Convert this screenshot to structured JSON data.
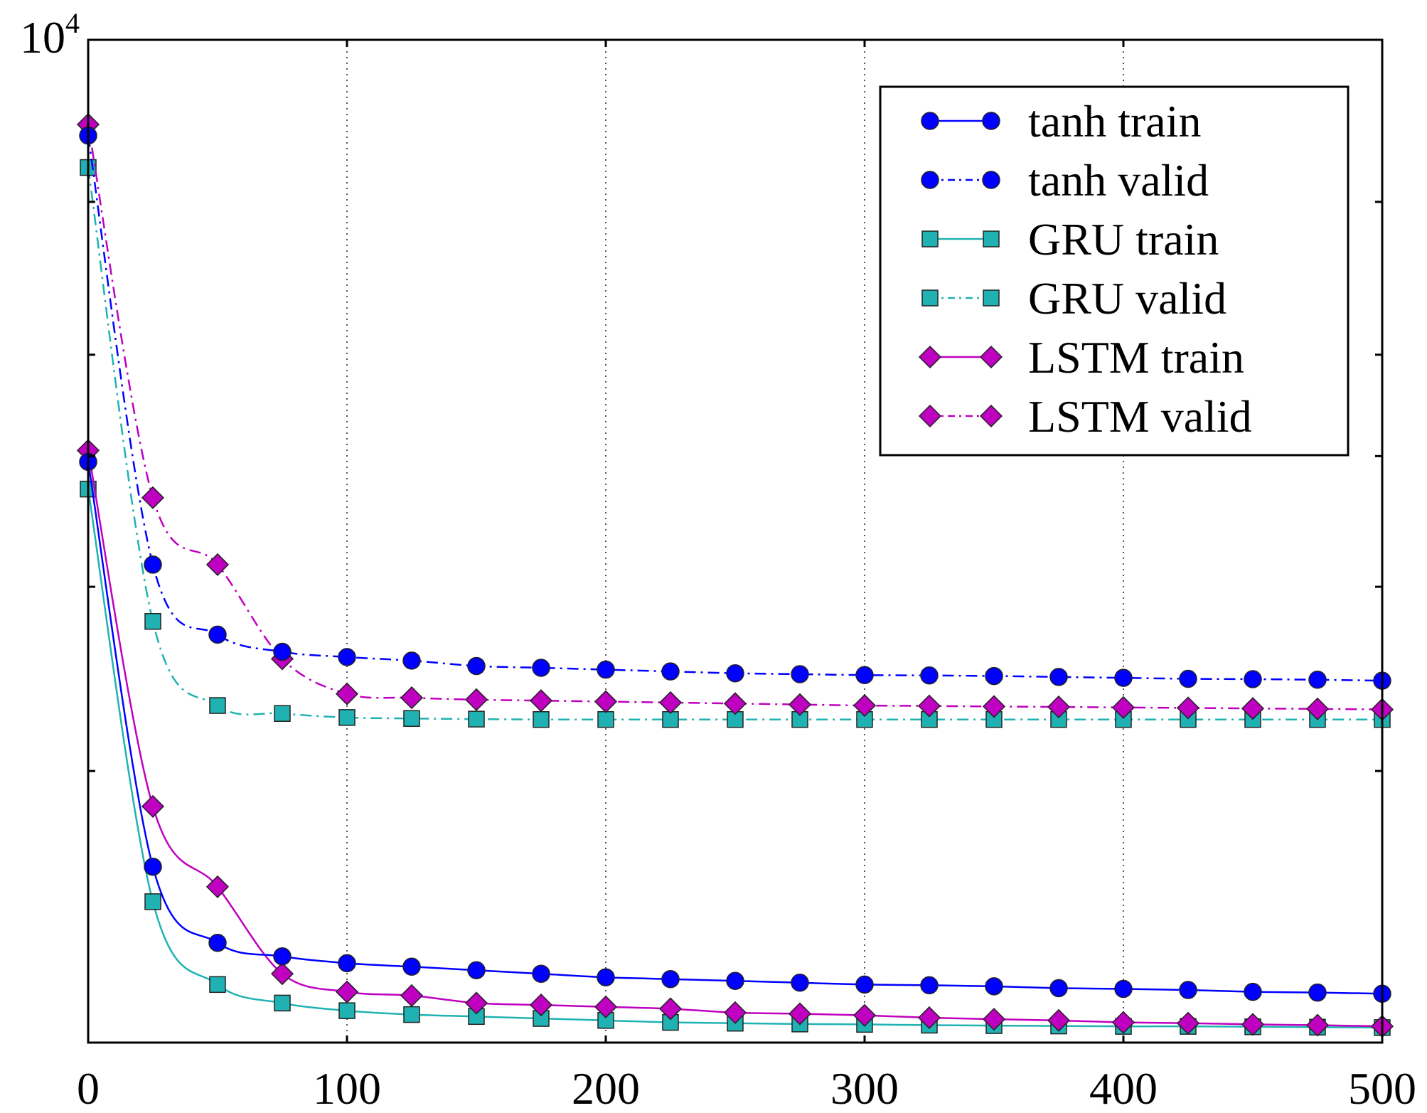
{
  "chart_data": {
    "type": "line",
    "title": "",
    "xlabel": "",
    "ylabel": "",
    "y_scale": "log",
    "xlim": [
      0,
      500
    ],
    "x_ticks": [
      0,
      100,
      200,
      300,
      400,
      500
    ],
    "x_tick_labels": [
      "0",
      "100",
      "200",
      "300",
      "400",
      "500"
    ],
    "y_ticks": [
      10000
    ],
    "y_tick_labels": [
      "10",
      "4"
    ],
    "y_minor_ticks": [
      7000,
      5000,
      4000,
      3000,
      2000
    ],
    "grid": "vertical dotted at x tick marks",
    "legend_position": "top-right",
    "series": [
      {
        "name": "tanh train",
        "color": "#0000ff",
        "linestyle": "solid",
        "marker": "circle",
        "x": [
          0,
          25,
          50,
          75,
          100,
          125,
          150,
          175,
          200,
          225,
          250,
          275,
          300,
          325,
          350,
          375,
          400,
          425,
          450,
          475,
          500
        ],
        "y": [
          3950,
          1620,
          1370,
          1330,
          1310,
          1300,
          1290,
          1280,
          1270,
          1265,
          1260,
          1255,
          1250,
          1248,
          1245,
          1240,
          1238,
          1235,
          1230,
          1228,
          1225
        ]
      },
      {
        "name": "tanh valid",
        "color": "#0000ff",
        "linestyle": "dashdot",
        "marker": "circle",
        "x": [
          0,
          25,
          50,
          75,
          100,
          125,
          150,
          175,
          200,
          225,
          250,
          275,
          300,
          325,
          350,
          375,
          400,
          425,
          450,
          475,
          500
        ],
        "y": [
          8100,
          3150,
          2700,
          2600,
          2570,
          2550,
          2520,
          2510,
          2500,
          2490,
          2480,
          2475,
          2470,
          2468,
          2465,
          2460,
          2455,
          2450,
          2448,
          2445,
          2440
        ]
      },
      {
        "name": "GRU train",
        "color": "#20b2b2",
        "linestyle": "solid",
        "marker": "square",
        "x": [
          0,
          25,
          50,
          75,
          100,
          125,
          150,
          175,
          200,
          225,
          250,
          275,
          300,
          325,
          350,
          375,
          400,
          425,
          450,
          475,
          500
        ],
        "y": [
          3720,
          1500,
          1250,
          1200,
          1180,
          1170,
          1165,
          1160,
          1155,
          1150,
          1148,
          1146,
          1145,
          1143,
          1142,
          1141,
          1140,
          1140,
          1139,
          1138,
          1137
        ]
      },
      {
        "name": "GRU valid",
        "color": "#20b2b2",
        "linestyle": "dashdot",
        "marker": "square",
        "x": [
          0,
          25,
          50,
          75,
          100,
          125,
          150,
          175,
          200,
          225,
          250,
          275,
          300,
          325,
          350,
          375,
          400,
          425,
          450,
          475,
          500
        ],
        "y": [
          7550,
          2780,
          2310,
          2270,
          2250,
          2245,
          2242,
          2240,
          2240,
          2240,
          2240,
          2240,
          2240,
          2240,
          2240,
          2240,
          2240,
          2240,
          2240,
          2240,
          2240
        ]
      },
      {
        "name": "LSTM train",
        "color": "#c000c0",
        "linestyle": "solid",
        "marker": "diamond",
        "x": [
          0,
          25,
          50,
          75,
          100,
          125,
          150,
          175,
          200,
          225,
          250,
          275,
          300,
          325,
          350,
          375,
          400,
          425,
          450,
          475,
          500
        ],
        "y": [
          4050,
          1850,
          1550,
          1280,
          1230,
          1220,
          1200,
          1195,
          1190,
          1185,
          1175,
          1172,
          1168,
          1162,
          1158,
          1155,
          1150,
          1148,
          1145,
          1143,
          1140
        ]
      },
      {
        "name": "LSTM valid",
        "color": "#c000c0",
        "linestyle": "dashdot",
        "marker": "diamond",
        "x": [
          0,
          25,
          50,
          75,
          100,
          125,
          150,
          175,
          200,
          225,
          250,
          275,
          300,
          325,
          350,
          375,
          400,
          425,
          450,
          475,
          500
        ],
        "y": [
          8300,
          3650,
          3150,
          2560,
          2370,
          2350,
          2340,
          2335,
          2330,
          2325,
          2320,
          2315,
          2310,
          2308,
          2305,
          2303,
          2300,
          2298,
          2295,
          2293,
          2290
        ]
      }
    ]
  }
}
